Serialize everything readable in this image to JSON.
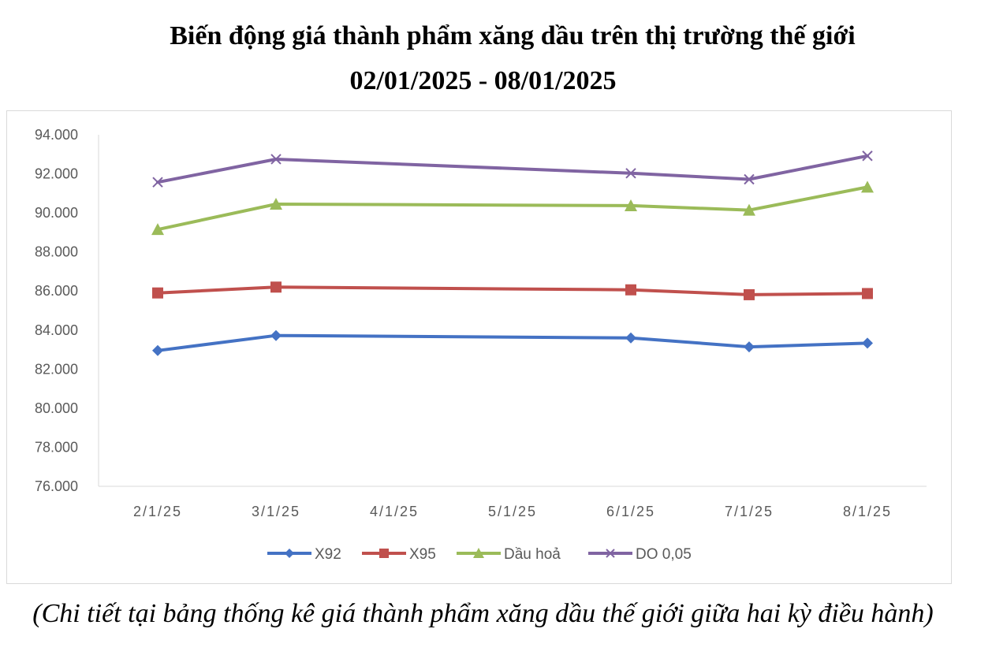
{
  "chart_data": {
    "type": "line",
    "title": "Biến động giá thành phẩm xăng dầu trên thị trường thế giới",
    "subtitle": "02/01/2025 - 08/01/2025",
    "xlabel": "",
    "ylabel": "",
    "categories": [
      "2/1/25",
      "3/1/25",
      "4/1/25",
      "5/1/25",
      "6/1/25",
      "7/1/25",
      "8/1/25"
    ],
    "x_days": [
      2,
      3,
      4,
      5,
      6,
      7,
      8
    ],
    "ylim": [
      76000,
      94000
    ],
    "y_ticks": [
      76000,
      78000,
      80000,
      82000,
      84000,
      86000,
      88000,
      90000,
      92000,
      94000
    ],
    "y_tick_labels": [
      "76.000",
      "78.000",
      "80.000",
      "82.000",
      "84.000",
      "86.000",
      "88.000",
      "90.000",
      "92.000",
      "94.000"
    ],
    "grid": false,
    "legend_position": "bottom",
    "series": [
      {
        "name": "X92",
        "color": "#4472C4",
        "marker": "diamond",
        "points": [
          {
            "x": 2,
            "y": 82950
          },
          {
            "x": 3,
            "y": 83720
          },
          {
            "x": 6,
            "y": 83600
          },
          {
            "x": 7,
            "y": 83140
          },
          {
            "x": 8,
            "y": 83330
          }
        ]
      },
      {
        "name": "X95",
        "color": "#C0504D",
        "marker": "square",
        "points": [
          {
            "x": 2,
            "y": 85900
          },
          {
            "x": 3,
            "y": 86200
          },
          {
            "x": 6,
            "y": 86060
          },
          {
            "x": 7,
            "y": 85810
          },
          {
            "x": 8,
            "y": 85870
          }
        ]
      },
      {
        "name": "Dầu hoả",
        "color": "#9BBB59",
        "marker": "triangle",
        "points": [
          {
            "x": 2,
            "y": 89150
          },
          {
            "x": 3,
            "y": 90450
          },
          {
            "x": 6,
            "y": 90370
          },
          {
            "x": 7,
            "y": 90140
          },
          {
            "x": 8,
            "y": 91320
          }
        ]
      },
      {
        "name": "DO 0,05",
        "color": "#8064A2",
        "marker": "x",
        "points": [
          {
            "x": 2,
            "y": 91570
          },
          {
            "x": 3,
            "y": 92750
          },
          {
            "x": 6,
            "y": 92030
          },
          {
            "x": 7,
            "y": 91720
          },
          {
            "x": 8,
            "y": 92920
          }
        ]
      }
    ]
  },
  "caption": "(Chi tiết tại bảng thống kê giá thành phẩm xăng dầu thế giới giữa hai kỳ điều hành)"
}
